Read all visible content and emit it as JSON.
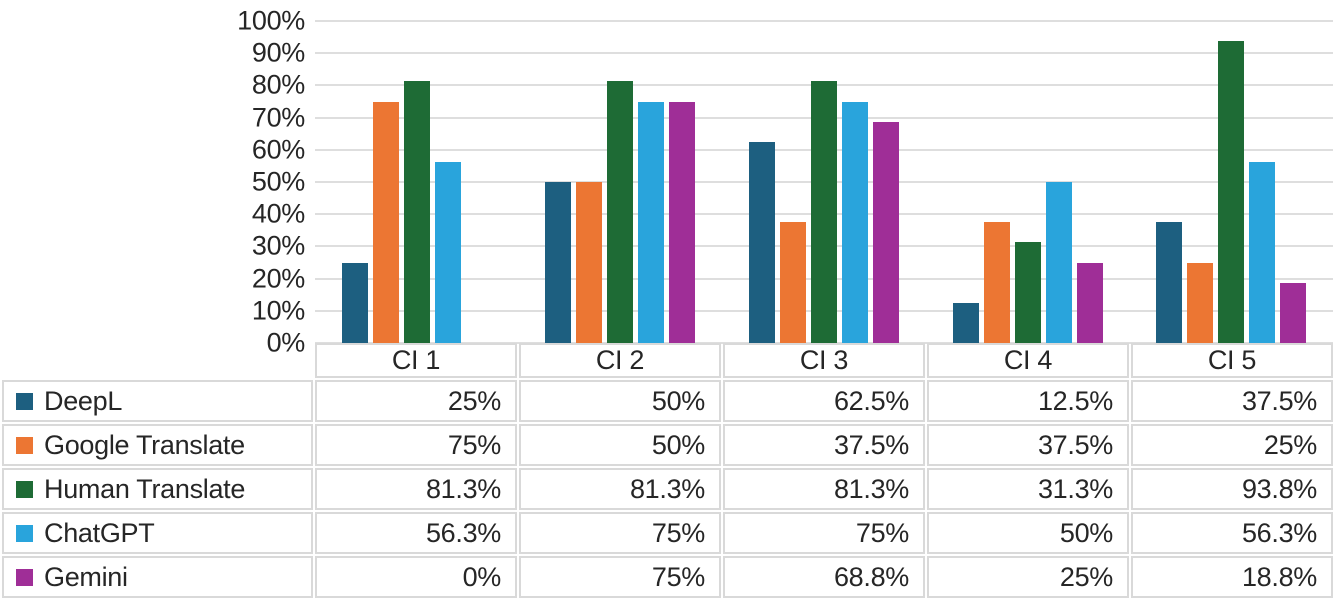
{
  "chart_data": {
    "type": "bar",
    "title": "",
    "xlabel": "",
    "ylabel": "",
    "categories": [
      "CI 1",
      "CI 2",
      "CI 3",
      "CI 4",
      "CI 5"
    ],
    "series": [
      {
        "name": "DeepL",
        "color": "#1D5F80",
        "values": [
          25,
          50,
          62.5,
          12.5,
          37.5
        ],
        "display_values": [
          "25%",
          "50%",
          "62.5%",
          "12.5%",
          "37.5%"
        ]
      },
      {
        "name": "Google Translate",
        "color": "#EC7633",
        "values": [
          75,
          50,
          37.5,
          37.5,
          25
        ],
        "display_values": [
          "75%",
          "50%",
          "37.5%",
          "37.5%",
          "25%"
        ]
      },
      {
        "name": "Human Translate",
        "color": "#1E6B35",
        "values": [
          81.3,
          81.3,
          81.3,
          31.3,
          93.8
        ],
        "display_values": [
          "81.3%",
          "81.3%",
          "81.3%",
          "31.3%",
          "93.8%"
        ]
      },
      {
        "name": "ChatGPT",
        "color": "#29A4DC",
        "values": [
          56.3,
          75,
          75,
          50,
          56.3
        ],
        "display_values": [
          "56.3%",
          "75%",
          "75%",
          "50%",
          "56.3%"
        ]
      },
      {
        "name": "Gemini",
        "color": "#9F2E97",
        "values": [
          0,
          75,
          68.8,
          25,
          18.8
        ],
        "display_values": [
          "0%",
          "75%",
          "68.8%",
          "25%",
          "18.8%"
        ]
      }
    ],
    "ylim": [
      0,
      100
    ],
    "ytick_step": 10,
    "ytick_labels": [
      "100%",
      "90%",
      "80%",
      "70%",
      "60%",
      "50%",
      "40%",
      "30%",
      "20%",
      "10%",
      "0%"
    ],
    "grid": "horizontal",
    "gridline_color": "#DEDEDE",
    "table_border_color": "#D9D9D9",
    "text_color": "#262626",
    "legend_position": "data-table-left"
  }
}
